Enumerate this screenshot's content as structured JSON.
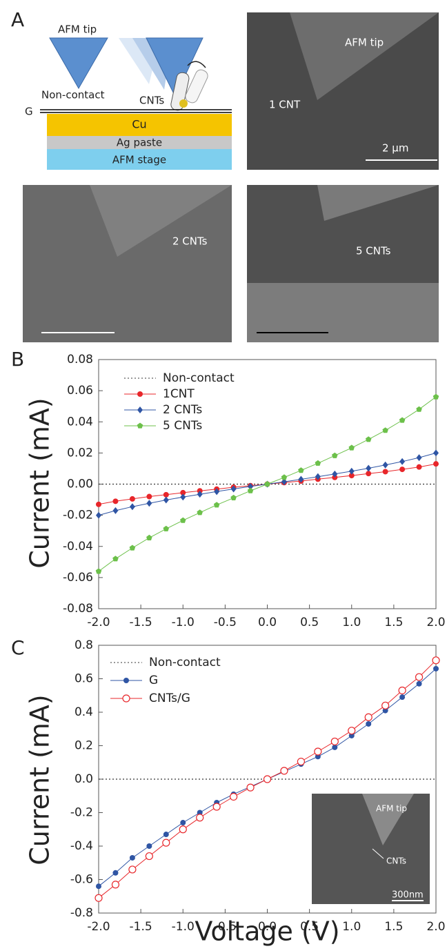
{
  "panel_a": {
    "label": "A",
    "tip_left": "AFM tip",
    "non_contact": "Non-contact",
    "cnts": "CNTs",
    "g": "G",
    "cu": "Cu",
    "ag": "Ag paste",
    "stage": "AFM stage",
    "img1_tip": "AFM tip",
    "img1_cnt": "1 CNT",
    "img1_scale": "2 μm",
    "img2_cnt": "2 CNTs",
    "img3_cnt": "5 CNTs"
  },
  "chart_data": [
    {
      "type": "line",
      "panel_label": "B",
      "ylabel": "Current (mA)",
      "legend": "top-left",
      "x": [
        -2.0,
        -1.8,
        -1.6,
        -1.4,
        -1.2,
        -1.0,
        -0.8,
        -0.6,
        -0.4,
        -0.2,
        0.0,
        0.2,
        0.4,
        0.6,
        0.8,
        1.0,
        1.2,
        1.4,
        1.6,
        1.8,
        2.0
      ],
      "xlim": [
        -2,
        2
      ],
      "ylim": [
        -0.08,
        0.08
      ],
      "xticks": [
        {
          "value": -2,
          "label": "-2.0"
        },
        -1.5,
        {
          "value": -1,
          "label": "-1.0"
        },
        -0.5,
        {
          "value": 0,
          "label": "0.0"
        },
        0.5,
        {
          "value": 1,
          "label": "1.0"
        },
        1.5,
        {
          "value": 2,
          "label": "2.0"
        }
      ],
      "yticks": [
        -0.08,
        -0.06,
        -0.04,
        -0.02,
        {
          "value": 0,
          "label": "0.00"
        },
        0.02,
        0.04,
        0.06,
        0.08
      ],
      "series": [
        {
          "name": "Non-contact",
          "color": "#333333",
          "style": "dotted",
          "marker": "none",
          "values": [
            0,
            0,
            0,
            0,
            0,
            0,
            0,
            0,
            0,
            0,
            0,
            0,
            0,
            0,
            0,
            0,
            0,
            0,
            0,
            0,
            0
          ]
        },
        {
          "name": "1CNT",
          "color": "#e8262a",
          "marker": "circle",
          "values": [
            -0.013,
            -0.011,
            -0.0095,
            -0.008,
            -0.0068,
            -0.0055,
            -0.0043,
            -0.0032,
            -0.002,
            -0.001,
            0,
            0.001,
            0.002,
            0.0032,
            0.0043,
            0.0055,
            0.0068,
            0.008,
            0.0095,
            0.011,
            0.013
          ]
        },
        {
          "name": "2 CNTs",
          "color": "#2f55a4",
          "marker": "diamond",
          "values": [
            -0.02,
            -0.017,
            -0.0145,
            -0.0123,
            -0.0102,
            -0.0083,
            -0.0065,
            -0.0048,
            -0.0031,
            -0.0015,
            0,
            0.0015,
            0.0031,
            0.0048,
            0.0065,
            0.0083,
            0.0102,
            0.0123,
            0.0145,
            0.017,
            0.02
          ]
        },
        {
          "name": "5 CNTs",
          "color": "#6cc04a",
          "marker": "pentagon",
          "values": [
            -0.056,
            -0.048,
            -0.041,
            -0.0345,
            -0.0287,
            -0.0233,
            -0.0183,
            -0.0134,
            -0.0088,
            -0.0043,
            0,
            0.0043,
            0.0088,
            0.0134,
            0.0183,
            0.0233,
            0.0287,
            0.0345,
            0.041,
            0.048,
            0.056
          ]
        }
      ]
    },
    {
      "type": "line",
      "panel_label": "C",
      "ylabel": "Current (mA)",
      "xlabel": "Voltage (V)",
      "legend": "top-left",
      "x": [
        -2.0,
        -1.8,
        -1.6,
        -1.4,
        -1.2,
        -1.0,
        -0.8,
        -0.6,
        -0.4,
        -0.2,
        0.0,
        0.2,
        0.4,
        0.6,
        0.8,
        1.0,
        1.2,
        1.4,
        1.6,
        1.8,
        2.0
      ],
      "xlim": [
        -2,
        2
      ],
      "ylim": [
        -0.8,
        0.8
      ],
      "xticks": [
        {
          "value": -2,
          "label": "-2.0"
        },
        -1.5,
        {
          "value": -1,
          "label": "-1.0"
        },
        -0.5,
        {
          "value": 0,
          "label": "0.0"
        },
        0.5,
        {
          "value": 1,
          "label": "1.0"
        },
        1.5,
        {
          "value": 2,
          "label": "2.0"
        }
      ],
      "yticks": [
        -0.8,
        -0.6,
        -0.4,
        -0.2,
        {
          "value": 0,
          "label": "0.0"
        },
        0.2,
        0.4,
        0.6,
        0.8
      ],
      "inset": {
        "tip": "AFM tip",
        "cnts": "CNTs",
        "scale": "300nm"
      },
      "series": [
        {
          "name": "Non-contact",
          "color": "#333333",
          "style": "dotted",
          "marker": "none",
          "values": [
            0,
            0,
            0,
            0,
            0,
            0,
            0,
            0,
            0,
            0,
            0,
            0,
            0,
            0,
            0,
            0,
            0,
            0,
            0,
            0,
            0
          ]
        },
        {
          "name": "G",
          "color": "#2f55a4",
          "marker": "circle",
          "values": [
            -0.64,
            -0.56,
            -0.47,
            -0.4,
            -0.33,
            -0.26,
            -0.2,
            -0.14,
            -0.09,
            -0.045,
            0,
            0.045,
            0.09,
            0.135,
            0.19,
            0.26,
            0.33,
            0.41,
            0.49,
            0.57,
            0.66
          ]
        },
        {
          "name": "CNTs/G",
          "color": "#e8262a",
          "marker": "open-circle",
          "values": [
            -0.71,
            -0.63,
            -0.54,
            -0.46,
            -0.38,
            -0.3,
            -0.23,
            -0.165,
            -0.105,
            -0.05,
            0,
            0.05,
            0.105,
            0.165,
            0.225,
            0.29,
            0.37,
            0.44,
            0.53,
            0.61,
            0.71
          ]
        }
      ]
    }
  ]
}
